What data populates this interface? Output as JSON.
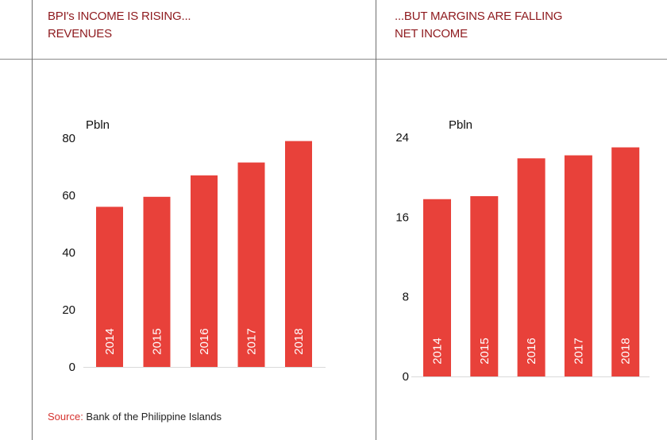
{
  "colors": {
    "bar": "#e8413a",
    "title": "#8e1a1e",
    "source_label": "#d6322e",
    "text": "#222222"
  },
  "left_panel": {
    "title_line1": "BPI's INCOME IS RISING...",
    "title_line2": "REVENUES"
  },
  "right_panel": {
    "title_line1": "...BUT MARGINS ARE FALLING",
    "title_line2": "NET INCOME"
  },
  "source": {
    "label": "Source:",
    "text": " Bank of the Philippine Islands"
  },
  "chart_data": [
    {
      "type": "bar",
      "title": "REVENUES",
      "ylabel": "Pbln",
      "categories": [
        "2014",
        "2015",
        "2016",
        "2017",
        "2018"
      ],
      "values": [
        56,
        59.5,
        67,
        71.5,
        79
      ],
      "ylim": [
        0,
        80
      ],
      "yticks": [
        0,
        20,
        40,
        60,
        80
      ],
      "grid": false,
      "category_labels_inside_bars": true
    },
    {
      "type": "bar",
      "title": "NET INCOME",
      "ylabel": "Pbln",
      "categories": [
        "2014",
        "2015",
        "2016",
        "2017",
        "2018"
      ],
      "values": [
        17.8,
        18.1,
        21.9,
        22.2,
        23.0
      ],
      "ylim": [
        0,
        24
      ],
      "yticks": [
        0,
        8,
        16,
        24
      ],
      "grid": false,
      "category_labels_inside_bars": true
    }
  ]
}
